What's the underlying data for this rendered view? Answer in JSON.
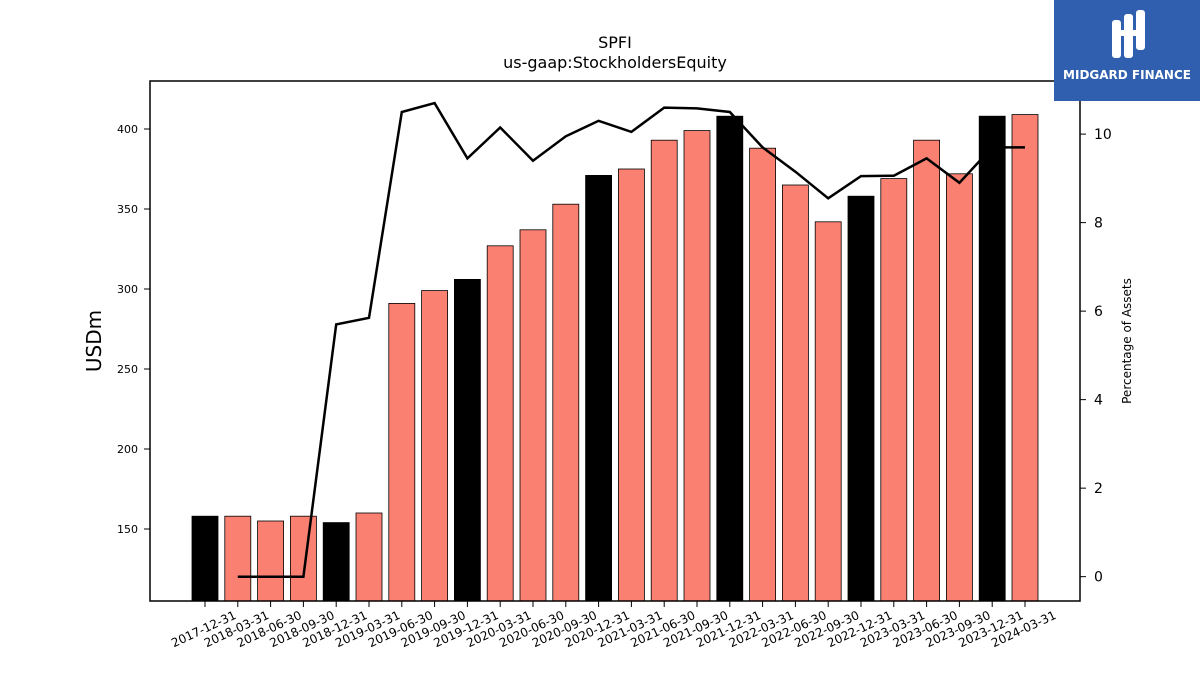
{
  "chart_data": {
    "type": "bar",
    "title": "SPFI",
    "subtitle": "us-gaap:StockholdersEquity",
    "ylabel": "USDm",
    "y2label": "Percentage of Assets",
    "ylim": [
      105,
      430
    ],
    "y2lim": [
      -0.55,
      11.2
    ],
    "yticks": [
      150,
      200,
      250,
      300,
      350,
      400
    ],
    "y2ticks": [
      0,
      2,
      4,
      6,
      8,
      10
    ],
    "grid": false,
    "categories": [
      "2017-12-31",
      "2018-03-31",
      "2018-06-30",
      "2018-09-30",
      "2018-12-31",
      "2019-03-31",
      "2019-06-30",
      "2019-09-30",
      "2019-12-31",
      "2020-03-31",
      "2020-06-30",
      "2020-09-30",
      "2020-12-31",
      "2021-03-31",
      "2021-06-30",
      "2021-09-30",
      "2021-12-31",
      "2022-03-31",
      "2022-06-30",
      "2022-09-30",
      "2022-12-31",
      "2023-03-31",
      "2023-06-30",
      "2023-09-30",
      "2023-12-31",
      "2024-03-31"
    ],
    "series": [
      {
        "kind": "bar",
        "values": [
          158,
          158,
          155,
          158,
          154,
          160,
          291,
          299,
          306,
          327,
          337,
          353,
          371,
          375,
          393,
          399,
          408,
          388,
          365,
          342,
          358,
          369,
          393,
          372,
          408,
          409
        ]
      },
      {
        "kind": "line",
        "axis": "right",
        "values": [
          null,
          0,
          0,
          0,
          5.7,
          5.85,
          10.5,
          10.7,
          9.45,
          10.15,
          9.4,
          9.95,
          10.3,
          10.05,
          10.6,
          10.58,
          10.5,
          9.7,
          9.15,
          8.55,
          9.05,
          9.06,
          9.45,
          8.9,
          9.7,
          9.7
        ]
      }
    ],
    "bar_colors": [
      "#000000",
      "#fa8072",
      "#fa8072",
      "#fa8072",
      "#000000",
      "#fa8072",
      "#fa8072",
      "#fa8072",
      "#000000",
      "#fa8072",
      "#fa8072",
      "#fa8072",
      "#000000",
      "#fa8072",
      "#fa8072",
      "#fa8072",
      "#000000",
      "#fa8072",
      "#fa8072",
      "#fa8072",
      "#000000",
      "#fa8072",
      "#fa8072",
      "#fa8072",
      "#000000",
      "#fa8072"
    ],
    "line_color": "#000000"
  },
  "logo": {
    "text": "MIDGARD FINANCE",
    "background": "#2f5fae"
  }
}
